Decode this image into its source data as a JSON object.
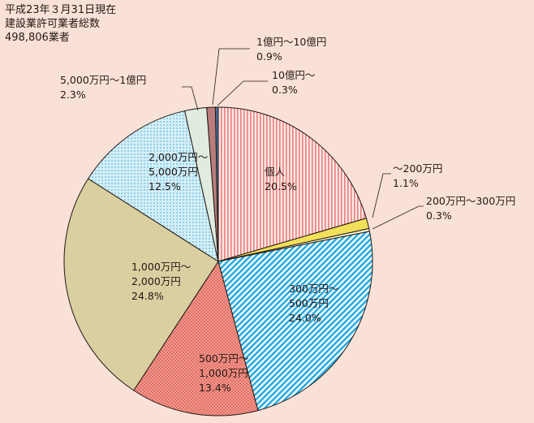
{
  "note": {
    "line1": "平成23年３月31日現在",
    "line2": "建設業許可業者総数",
    "line3": "498,806業者"
  },
  "chart_data": {
    "type": "pie",
    "title": "",
    "start": "12 o'clock",
    "direction": "clockwise",
    "unit": "%",
    "slices": [
      {
        "lines": [
          "個人"
        ],
        "value": 20.5,
        "color": "#f4b0ac",
        "pattern": "vertical-lines"
      },
      {
        "lines": [
          "～200万円"
        ],
        "value": 1.1,
        "color": "#f2df5a",
        "pattern": "solid"
      },
      {
        "lines": [
          "200万円～300万円"
        ],
        "value": 0.3,
        "color": "#f7f4cc",
        "pattern": "solid"
      },
      {
        "lines": [
          "300万円～",
          "500万円"
        ],
        "value": 24.0,
        "color": "#29b3e6",
        "pattern": "diagonal-lines"
      },
      {
        "lines": [
          "500万円～",
          "1,000万円"
        ],
        "value": 13.4,
        "color": "#ee8d82",
        "pattern": "crosshatch"
      },
      {
        "lines": [
          "1,000万円～",
          "2,000万円"
        ],
        "value": 24.8,
        "color": "#d9cfa0",
        "pattern": "solid"
      },
      {
        "lines": [
          "2,000万円～",
          "5,000万円"
        ],
        "value": 12.5,
        "color": "#a8dcec",
        "pattern": "dots"
      },
      {
        "lines": [
          "5,000万円～1億円"
        ],
        "value": 2.3,
        "color": "#dfecdf",
        "pattern": "solid"
      },
      {
        "lines": [
          "1億円～10億円"
        ],
        "value": 0.9,
        "color": "#b87c7c",
        "pattern": "solid"
      },
      {
        "lines": [
          "10億円～"
        ],
        "value": 0.3,
        "color": "#4a6ea0",
        "pattern": "solid"
      }
    ]
  }
}
